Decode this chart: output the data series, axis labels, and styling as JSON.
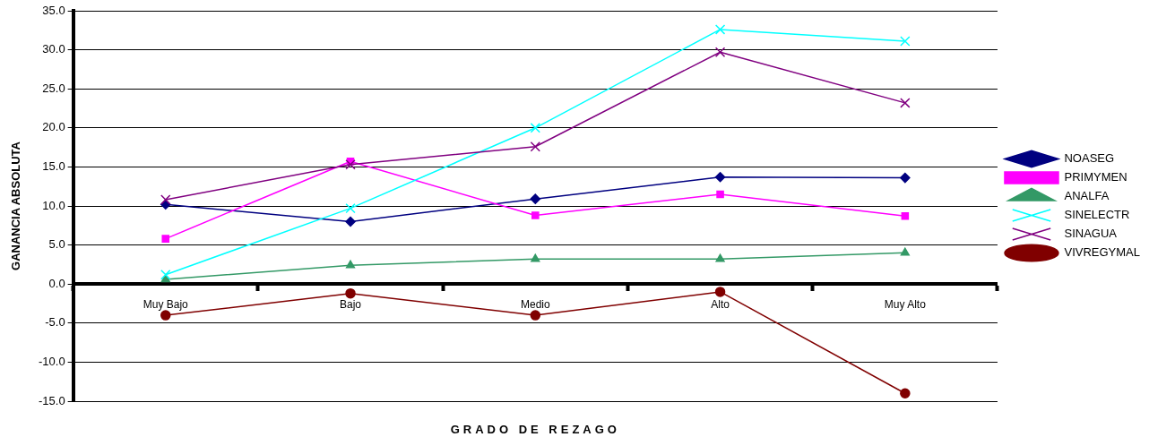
{
  "chart_data": {
    "type": "line",
    "xlabel": "GRADO DE REZAGO",
    "ylabel": "GANANCIA ABSOLUTA",
    "categories": [
      "Muy Bajo",
      "Bajo",
      "Medio",
      "Alto",
      "Muy Alto"
    ],
    "series": [
      {
        "name": "NOASEG",
        "color": "#000080",
        "marker": "diamond",
        "values": [
          10.2,
          8.0,
          10.9,
          13.7,
          13.6
        ]
      },
      {
        "name": "PRIMYMEN",
        "color": "#ff00ff",
        "marker": "square",
        "values": [
          5.8,
          15.7,
          8.8,
          11.5,
          8.7
        ]
      },
      {
        "name": "ANALFA",
        "color": "#339966",
        "marker": "triangle",
        "values": [
          0.6,
          2.4,
          3.2,
          3.2,
          4.0
        ]
      },
      {
        "name": "SINELECTR",
        "color": "#00ffff",
        "marker": "cross",
        "values": [
          1.2,
          9.7,
          20.0,
          32.6,
          31.1
        ]
      },
      {
        "name": "SINAGUA",
        "color": "#800080",
        "marker": "cross",
        "values": [
          10.8,
          15.3,
          17.6,
          29.7,
          23.2
        ]
      },
      {
        "name": "VIVREGYMAL",
        "color": "#800000",
        "marker": "circle",
        "values": [
          -4.0,
          -1.2,
          -4.0,
          -1.0,
          -14.0
        ]
      }
    ],
    "ylim": [
      -15,
      35
    ],
    "yticks": [
      {
        "value": -15,
        "label": "-15.0"
      },
      {
        "value": -10,
        "label": "-10.0"
      },
      {
        "value": -5,
        "label": "-5.0"
      },
      {
        "value": 0,
        "label": "0.0"
      },
      {
        "value": 5,
        "label": "5.0"
      },
      {
        "value": 10,
        "label": "10.0"
      },
      {
        "value": 15,
        "label": "15.0"
      },
      {
        "value": 20,
        "label": "20.0"
      },
      {
        "value": 25,
        "label": "25.0"
      },
      {
        "value": 30,
        "label": "30.0"
      },
      {
        "value": 35,
        "label": "35.0"
      }
    ],
    "grid": "y",
    "legend": "right",
    "line_style": "solid"
  }
}
